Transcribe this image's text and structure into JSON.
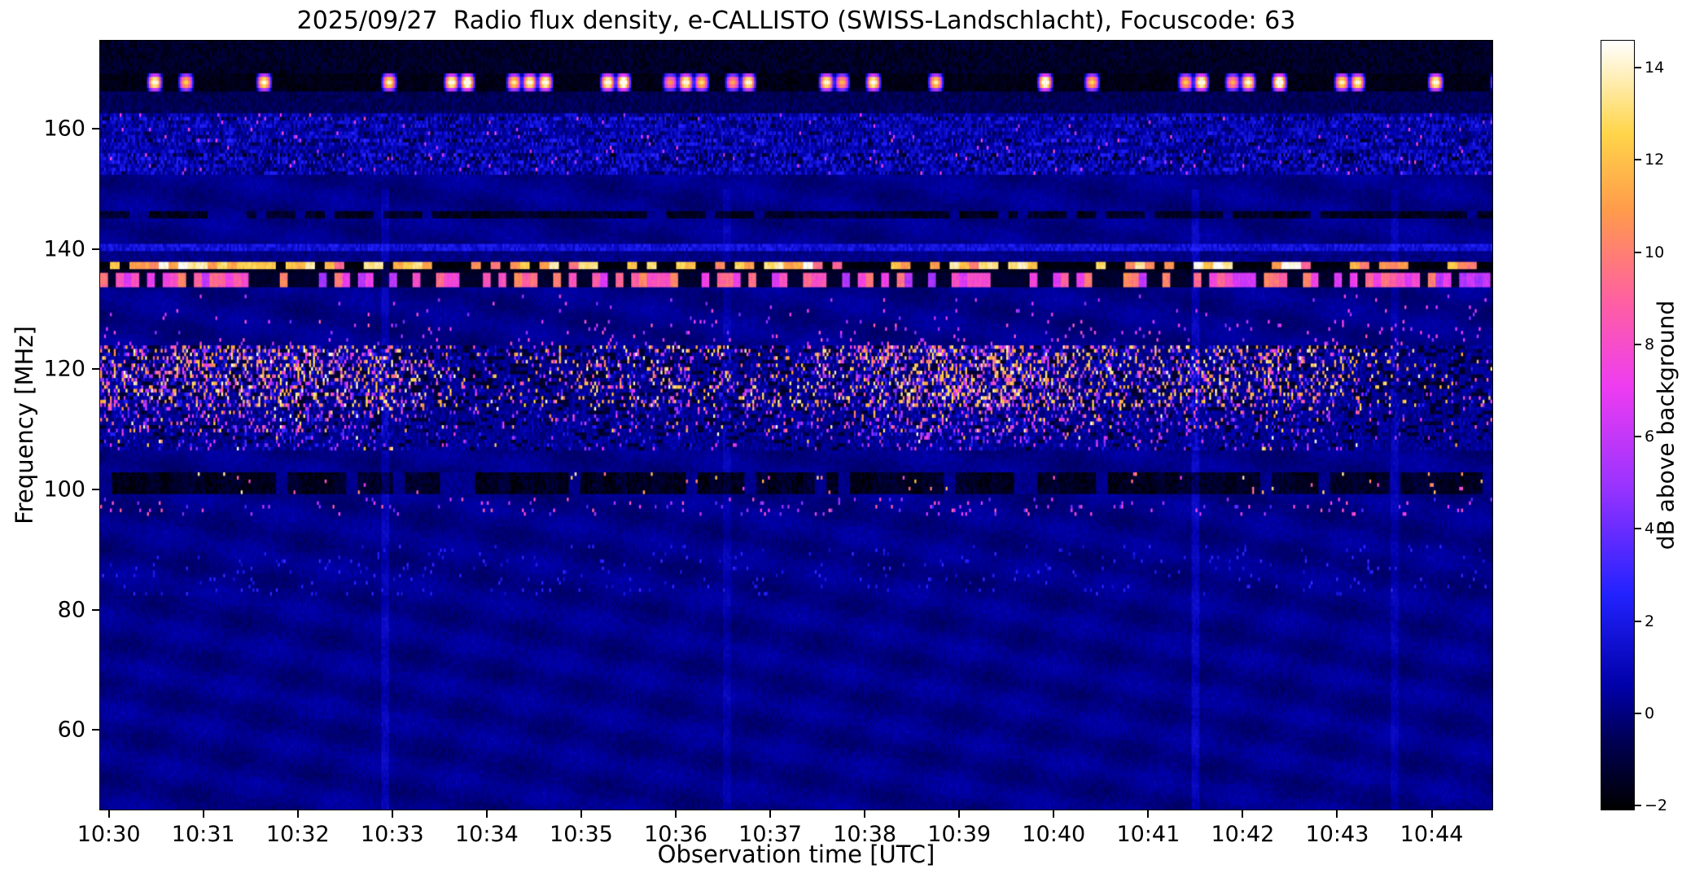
{
  "chart_data": {
    "type": "heatmap",
    "title": "2025/09/27  Radio flux density, e-CALLISTO (SWISS-Landschlacht), Focuscode: 63",
    "xlabel": "Observation time [UTC]",
    "ylabel": "Frequency [MHz]",
    "x_ticks": [
      "10:30",
      "10:31",
      "10:32",
      "10:33",
      "10:34",
      "10:35",
      "10:36",
      "10:37",
      "10:38",
      "10:39",
      "10:40",
      "10:41",
      "10:42",
      "10:43",
      "10:44"
    ],
    "x_tick_seconds": [
      0,
      60,
      120,
      180,
      240,
      300,
      360,
      420,
      480,
      540,
      600,
      660,
      720,
      780,
      840
    ],
    "x_range_seconds": [
      -6,
      879
    ],
    "y_ticks": [
      60,
      80,
      100,
      120,
      140,
      160
    ],
    "y_range_mhz": [
      46.6,
      174.8
    ],
    "colorbar": {
      "label": "dB above background",
      "ticks": [
        -2,
        0,
        2,
        4,
        6,
        8,
        10,
        12,
        14
      ],
      "range": [
        -2.1,
        14.6
      ]
    },
    "colormap": {
      "name": "black-blue-magenta-orange-white (gnuplot2-like)",
      "stops": [
        [
          0,
          "#000000"
        ],
        [
          0.09,
          "#000055"
        ],
        [
          0.16,
          "#0000a8"
        ],
        [
          0.28,
          "#2222ff"
        ],
        [
          0.42,
          "#9933ff"
        ],
        [
          0.55,
          "#ee3cf1"
        ],
        [
          0.66,
          "#ff5fa2"
        ],
        [
          0.78,
          "#ff9b4a"
        ],
        [
          0.88,
          "#ffd54a"
        ],
        [
          1,
          "#ffffff"
        ]
      ]
    },
    "features": [
      "Intermittent bright RFI bursts near 167-169 MHz over a black band",
      "Dark band 169-175 MHz at top edge",
      "Noisy blue interference band 152-163 MHz",
      "Dark dashed carrier line near 146 MHz",
      "Faint brighter line near 140 MHz",
      "Bright white/yellow dashed RFI line near 137-138 MHz",
      "Magenta dashed RFI line near 134-136 MHz",
      "Dense speckled aeronautical RFI band 108-126 MHz with black gaps and white-hot pixels",
      "Dark absorbed band 99.5-103 MHz with sporadic bright dots",
      "Smooth dark-blue background below 95 MHz with faint ripple interference pattern and weak vertical streaks"
    ],
    "render": {
      "nT": 713,
      "nF": 212,
      "background": {
        "v0": 0.15,
        "noise": 0.5,
        "ripple": [
          {
            "amp": 0.26,
            "tf": 6,
            "ff": 0.13,
            "ph": 0
          },
          {
            "amp": 0.16,
            "tf": 14,
            "ff": -0.05,
            "ph": 1.3
          }
        ]
      },
      "streaks": [
        {
          "t": 0.205,
          "dv": 0.8
        },
        {
          "t": 0.45,
          "dv": 0.55
        },
        {
          "t": 0.787,
          "dv": 0.9
        },
        {
          "t": 0.93,
          "dv": 0.6
        }
      ],
      "bands": [
        {
          "f": [
            169.4,
            174.8
          ],
          "kind": "solid",
          "v": -1.4,
          "noise": 0.5
        },
        {
          "f": [
            166.3,
            169.4
          ],
          "kind": "blobs",
          "seg": 8,
          "duty": 0.3,
          "v_peak": 14.4,
          "v_gap": -1.7
        },
        {
          "f": [
            163.0,
            166.3
          ],
          "kind": "solid",
          "v": -0.6,
          "noise": 0.5
        },
        {
          "f": [
            152.4,
            163.0
          ],
          "kind": "noise",
          "v0": 0.7,
          "amp": 1.5,
          "bright_density": 0.012,
          "bright_v": [
            4.5,
            8.0
          ]
        },
        {
          "f": [
            145.2,
            146.4
          ],
          "kind": "dashes",
          "seg": 5,
          "duty": 0.78,
          "v_on": [
            -1.8,
            -1.2
          ],
          "v_off": 0.3
        },
        {
          "f": [
            139.9,
            140.8
          ],
          "kind": "solid",
          "v": 1.7,
          "noise": 0.8
        },
        {
          "f": [
            138.2,
            139.9
          ],
          "kind": "solid",
          "v": 0.1,
          "noise": 0.4
        },
        {
          "f": [
            136.8,
            138.2
          ],
          "kind": "dashes",
          "seg": 5,
          "duty": 0.62,
          "v_on": [
            9.0,
            14.6
          ],
          "v_off": -1.9
        },
        {
          "f": [
            135.9,
            136.8
          ],
          "kind": "solid",
          "v": -1.5,
          "noise": 0.3
        },
        {
          "f": [
            133.9,
            135.9
          ],
          "kind": "dashes",
          "seg": 4,
          "duty": 0.55,
          "v_on": [
            5.0,
            10.5
          ],
          "v_off": -1.3
        },
        {
          "f": [
            128.5,
            132.5
          ],
          "kind": "speckle",
          "density": 0.012,
          "v": [
            4,
            8
          ]
        },
        {
          "f": [
            123.8,
            128.5
          ],
          "kind": "speckle",
          "density": 0.035,
          "v": [
            4,
            9
          ]
        },
        {
          "f": [
            113.5,
            123.8
          ],
          "kind": "aero",
          "black": 0.27,
          "density": 0.4,
          "v": [
            1.5,
            13.5
          ],
          "bright": 0.1
        },
        {
          "f": [
            109.5,
            113.5
          ],
          "kind": "aero",
          "black": 0.18,
          "density": 0.26,
          "v": [
            1.0,
            10.0
          ],
          "bright": 0.03
        },
        {
          "f": [
            106.3,
            109.5
          ],
          "kind": "aero",
          "black": 0.1,
          "density": 0.14,
          "v": [
            1.0,
            7.5
          ],
          "bright": 0.012
        },
        {
          "f": [
            99.5,
            102.8
          ],
          "kind": "dashes",
          "seg": 6,
          "duty": 0.85,
          "v_on": [
            -1.8,
            -1.1
          ],
          "v_off": 0.2
        },
        {
          "f": [
            99.5,
            102.8
          ],
          "kind": "speckle",
          "density": 0.015,
          "v": [
            7,
            14
          ]
        },
        {
          "f": [
            95.5,
            98.8
          ],
          "kind": "speckle",
          "density": 0.035,
          "v": [
            3,
            9
          ]
        },
        {
          "f": [
            82.0,
            91.0
          ],
          "kind": "speckle",
          "density": 0.03,
          "v": [
            1.4,
            3.2
          ]
        }
      ]
    }
  }
}
